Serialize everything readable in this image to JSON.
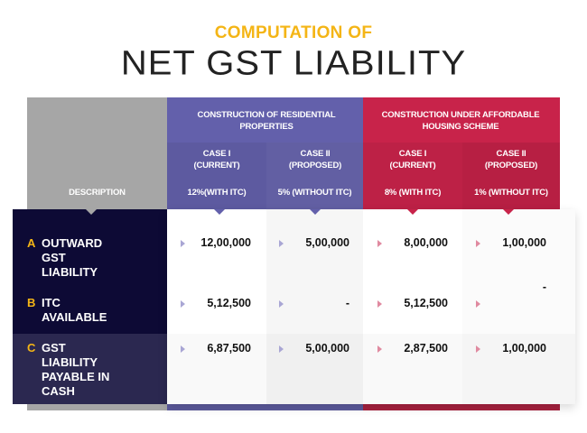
{
  "title": {
    "line1": "COMPUTATION OF",
    "line2": "NET GST LIABILITY"
  },
  "colors": {
    "accent": "#f4b516",
    "purple": "#6360ab",
    "red": "#c8234a",
    "gray": "#a6a6a6",
    "navy": "#0d0a35"
  },
  "header": {
    "description": "DESCRIPTION",
    "groups": [
      {
        "label": "CONSTRUCTION OF RESIDENTIAL PROPERTIES"
      },
      {
        "label": "CONSTRUCTION UNDER AFFORDABLE HOUSING SCHEME"
      }
    ],
    "cases": [
      {
        "case": "CASE I (CURRENT)",
        "rate": "12%(WITH ITC)"
      },
      {
        "case": "CASE II (PROPOSED)",
        "rate": "5% (WITHOUT ITC)"
      },
      {
        "case": "CASE I (CURRENT)",
        "rate": "8% (WITH ITC)"
      },
      {
        "case": "CASE II (PROPOSED)",
        "rate": "1% (WITHOUT ITC)"
      }
    ]
  },
  "rows": [
    {
      "letter": "A",
      "label": "OUTWARD GST LIABILITY",
      "values": [
        "12,00,000",
        "5,00,000",
        "8,00,000",
        "1,00,000"
      ]
    },
    {
      "letter": "B",
      "label": "ITC AVAILABLE",
      "values": [
        "5,12,500",
        "-",
        "5,12,500",
        "-"
      ]
    },
    {
      "letter": "C",
      "label": "GST LIABILITY PAYABLE IN CASH",
      "values": [
        "6,87,500",
        "5,00,000",
        "2,87,500",
        "1,00,000"
      ]
    }
  ]
}
